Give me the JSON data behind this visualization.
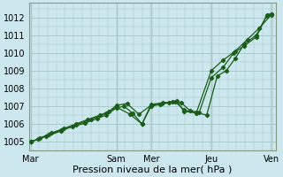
{
  "bg_color": "#cce8ee",
  "grid_color": "#aacccc",
  "line_color": "#1a5c1a",
  "marker_color": "#1a5c1a",
  "xlabel": "Pression niveau de la mer( hPa )",
  "ylim": [
    1004.5,
    1012.8
  ],
  "xtick_labels": [
    "Mar",
    "Sam",
    "Mer",
    "Jeu",
    "Ven"
  ],
  "xtick_positions": [
    0,
    2.85,
    4.0,
    6.0,
    8.0
  ],
  "line1_x": [
    0,
    0.25,
    0.6,
    1.0,
    1.4,
    1.8,
    2.2,
    2.5,
    2.85,
    3.1,
    3.4,
    3.7,
    4.0,
    4.3,
    4.6,
    4.85,
    5.1,
    5.5,
    5.85,
    6.2,
    6.5,
    6.8,
    7.1,
    7.5,
    7.85,
    8.0
  ],
  "line1_y": [
    1005.0,
    1005.15,
    1005.4,
    1005.65,
    1005.85,
    1006.05,
    1006.3,
    1006.5,
    1006.9,
    1007.0,
    1006.6,
    1006.0,
    1007.0,
    1007.1,
    1007.2,
    1007.3,
    1006.7,
    1006.65,
    1006.5,
    1008.7,
    1009.0,
    1009.7,
    1010.5,
    1011.0,
    1012.1,
    1012.2
  ],
  "line2_x": [
    0,
    0.3,
    0.7,
    1.1,
    1.5,
    1.9,
    2.3,
    2.6,
    2.85,
    3.2,
    3.6,
    4.0,
    4.35,
    4.7,
    5.0,
    5.3,
    5.6,
    6.0,
    6.4,
    6.75,
    7.1,
    7.5,
    7.85,
    8.0
  ],
  "line2_y": [
    1005.0,
    1005.2,
    1005.5,
    1005.75,
    1006.0,
    1006.25,
    1006.5,
    1006.7,
    1007.05,
    1007.15,
    1006.55,
    1007.05,
    1007.15,
    1007.25,
    1007.2,
    1006.75,
    1006.65,
    1008.6,
    1009.2,
    1010.0,
    1010.4,
    1010.9,
    1012.15,
    1012.2
  ],
  "line3_x": [
    0,
    0.5,
    1.0,
    1.5,
    2.0,
    2.5,
    2.85,
    3.3,
    3.7,
    4.0,
    4.4,
    4.8,
    5.1,
    5.5,
    6.0,
    6.4,
    6.8,
    7.2,
    7.6,
    8.0
  ],
  "line3_y": [
    1005.0,
    1005.3,
    1005.6,
    1005.95,
    1006.25,
    1006.6,
    1006.95,
    1006.55,
    1006.0,
    1007.1,
    1007.2,
    1007.25,
    1006.8,
    1006.6,
    1009.0,
    1009.6,
    1010.1,
    1010.75,
    1011.4,
    1012.15
  ],
  "vlines_x": [
    0,
    2.85,
    4.0,
    6.0,
    8.0
  ],
  "xlabel_fontsize": 8,
  "tick_fontsize": 7
}
